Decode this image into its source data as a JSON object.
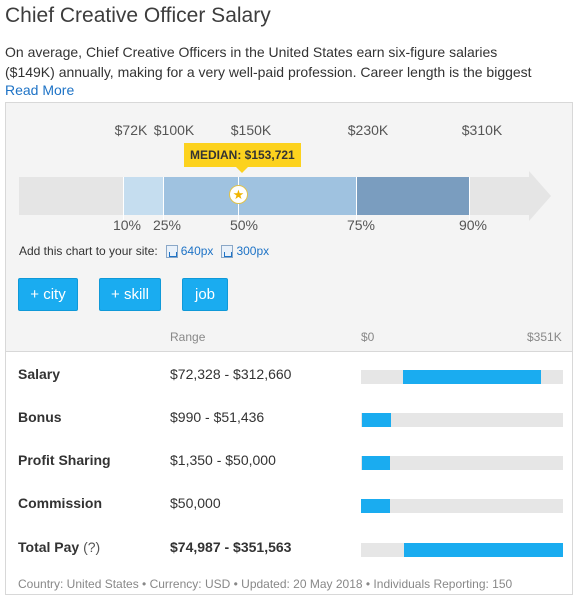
{
  "page": {
    "title": "Chief Creative Officer Salary",
    "description_line1": "On average, Chief Creative Officers in the United States earn six-figure salaries",
    "description_line2": "($149K) annually, making for a very well-paid profession. Career length is the biggest",
    "read_more": "Read More"
  },
  "chart": {
    "top_ticks": [
      "$72K",
      "$100K",
      "$150K",
      "$230K",
      "$310K"
    ],
    "bottom_ticks": [
      "10%",
      "25%",
      "50%",
      "75%",
      "90%"
    ],
    "median_label": "MEDIAN: $153,721",
    "median_icon": "star-icon",
    "colors": {
      "p10_25": "#c5ddef",
      "p25_75": "#9fc2e0",
      "p75_90": "#7a9dbf",
      "track": "#e5e5e5",
      "median": "#fcd21e"
    }
  },
  "embed": {
    "label": "Add this chart to your site:",
    "link1": "640px",
    "link2": "300px"
  },
  "buttons": {
    "city": "+ city",
    "skill": "+ skill",
    "job": "job"
  },
  "table": {
    "header_range": "Range",
    "header_min": "$0",
    "header_max": "$351K",
    "scale_max": 351000,
    "rows": [
      {
        "label": "Salary",
        "range": "$72,328 - $312,660",
        "min": 72328,
        "max": 312660
      },
      {
        "label": "Bonus",
        "range": "$990 - $51,436",
        "min": 990,
        "max": 51436
      },
      {
        "label": "Profit Sharing",
        "range": "$1,350 - $50,000",
        "min": 1350,
        "max": 50000
      },
      {
        "label": "Commission",
        "range": "$50,000",
        "min": 0,
        "max": 50000
      },
      {
        "label": "Total Pay",
        "help": "(?)",
        "range": "$74,987 - $351,563",
        "min": 74987,
        "max": 351563
      }
    ]
  },
  "footer": {
    "text": "Country: United States • Currency: USD • Updated: 20 May 2018 • Individuals Reporting: 150"
  }
}
